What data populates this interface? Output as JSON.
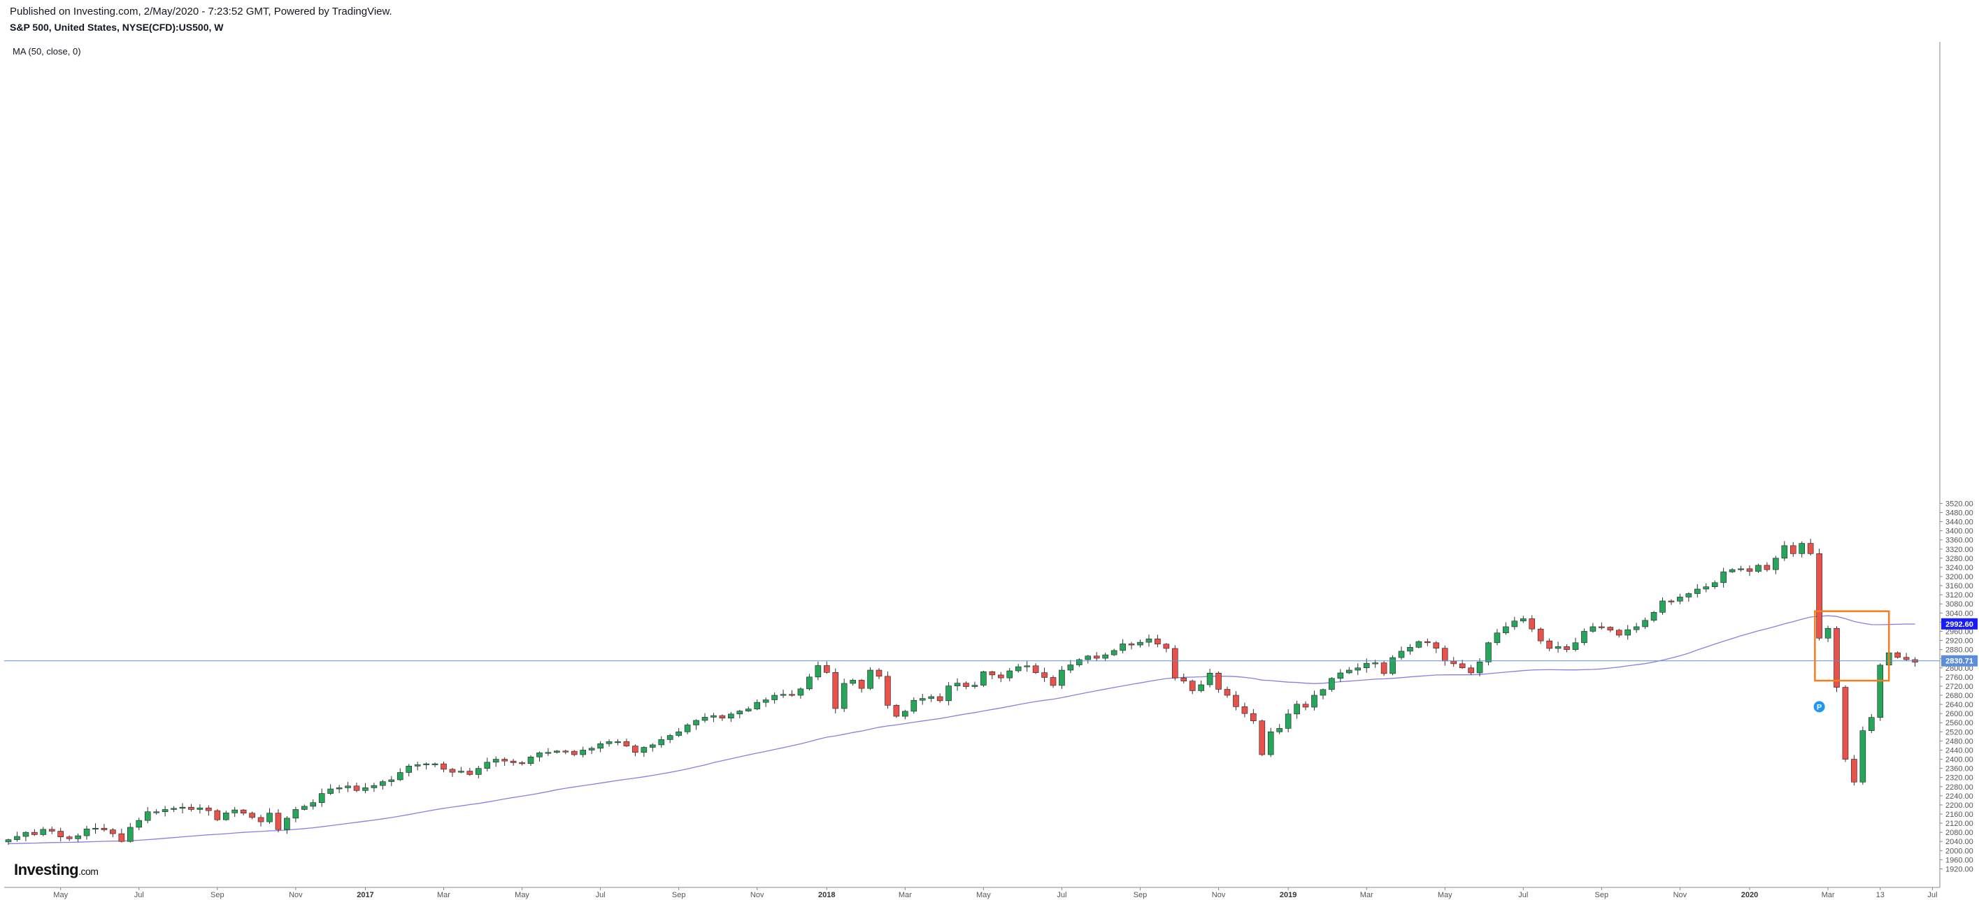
{
  "header": {
    "publish_line": "Published on Investing.com, 2/May/2020 - 7:23:52 GMT, Powered by TradingView.",
    "symbol_line": "S&P 500, United States, NYSE(CFD):US500, W"
  },
  "indicator_label": "MA (50, close, 0)",
  "logo": {
    "main": "Investing",
    "suffix": ".com"
  },
  "colors": {
    "up": "#26a65b",
    "down": "#e8524a",
    "ma": "#8a7fe0",
    "last_price": "#5b8dd9",
    "ma_badge": "#1a1aff",
    "highlight": "#f57c1f",
    "marker": "#2196f3"
  },
  "chart_data": {
    "type": "candlestick",
    "title": "S&P 500, United States, NYSE(CFD):US500, W",
    "y_range": [
      1900,
      5540
    ],
    "y_ticks": [
      "1920.00",
      "1960.00",
      "2000.00",
      "2040.00",
      "2080.00",
      "2120.00",
      "2160.00",
      "2200.00",
      "2240.00",
      "2280.00",
      "2320.00",
      "2360.00",
      "2400.00",
      "2440.00",
      "2480.00",
      "2520.00",
      "2560.00",
      "2600.00",
      "2640.00",
      "2680.00",
      "2720.00",
      "2760.00",
      "2800.00",
      "2840.00",
      "2880.00",
      "2920.00",
      "2960.00",
      "3000.00",
      "3040.00",
      "3080.00",
      "3120.00",
      "3160.00",
      "3200.00",
      "3240.00",
      "3280.00",
      "3320.00",
      "3360.00",
      "3400.00",
      "3440.00",
      "3480.00",
      "3520.00"
    ],
    "x_labels": [
      {
        "label": "May",
        "week": 6,
        "bold": false
      },
      {
        "label": "Jul",
        "week": 15,
        "bold": false
      },
      {
        "label": "Sep",
        "week": 24,
        "bold": false
      },
      {
        "label": "Nov",
        "week": 33,
        "bold": false
      },
      {
        "label": "2017",
        "week": 41,
        "bold": true
      },
      {
        "label": "Mar",
        "week": 50,
        "bold": false
      },
      {
        "label": "May",
        "week": 59,
        "bold": false
      },
      {
        "label": "Jul",
        "week": 68,
        "bold": false
      },
      {
        "label": "Sep",
        "week": 77,
        "bold": false
      },
      {
        "label": "Nov",
        "week": 86,
        "bold": false
      },
      {
        "label": "2018",
        "week": 94,
        "bold": true
      },
      {
        "label": "Mar",
        "week": 103,
        "bold": false
      },
      {
        "label": "May",
        "week": 112,
        "bold": false
      },
      {
        "label": "Jul",
        "week": 121,
        "bold": false
      },
      {
        "label": "Sep",
        "week": 130,
        "bold": false
      },
      {
        "label": "Nov",
        "week": 139,
        "bold": false
      },
      {
        "label": "2019",
        "week": 147,
        "bold": true
      },
      {
        "label": "Mar",
        "week": 156,
        "bold": false
      },
      {
        "label": "May",
        "week": 165,
        "bold": false
      },
      {
        "label": "Jul",
        "week": 174,
        "bold": false
      },
      {
        "label": "Sep",
        "week": 183,
        "bold": false
      },
      {
        "label": "Nov",
        "week": 192,
        "bold": false
      },
      {
        "label": "2020",
        "week": 200,
        "bold": true
      },
      {
        "label": "Mar",
        "week": 209,
        "bold": false
      },
      {
        "label": "13",
        "week": 215,
        "bold": false
      },
      {
        "label": "Jul",
        "week": 221,
        "bold": false
      }
    ],
    "last_price": {
      "value": 2830.71,
      "label": "2830.71"
    },
    "ma_last": {
      "value": 2992.6,
      "label": "2992.60"
    },
    "ma_start": 2030,
    "highlight_box": {
      "week_from": 207.5,
      "week_to": 216,
      "price_from": 2744,
      "price_to": 3048
    },
    "marker": {
      "label": "P",
      "week": 208,
      "price": 2630
    },
    "closes": [
      2048,
      2062,
      2080,
      2070,
      2093,
      2085,
      2060,
      2052,
      2065,
      2095,
      2098,
      2091,
      2074,
      2040,
      2102,
      2132,
      2170,
      2170,
      2180,
      2185,
      2190,
      2180,
      2187,
      2175,
      2135,
      2165,
      2178,
      2164,
      2145,
      2126,
      2164,
      2092,
      2142,
      2180,
      2194,
      2210,
      2250,
      2270,
      2275,
      2283,
      2263,
      2275,
      2285,
      2302,
      2310,
      2342,
      2370,
      2376,
      2380,
      2380,
      2356,
      2343,
      2348,
      2333,
      2360,
      2387,
      2400,
      2392,
      2385,
      2381,
      2410,
      2428,
      2430,
      2436,
      2435,
      2420,
      2440,
      2448,
      2468,
      2477,
      2477,
      2458,
      2430,
      2452,
      2463,
      2486,
      2504,
      2520,
      2550,
      2570,
      2584,
      2591,
      2580,
      2598,
      2611,
      2620,
      2649,
      2660,
      2680,
      2684,
      2680,
      2708,
      2760,
      2810,
      2780,
      2622,
      2732,
      2746,
      2710,
      2790,
      2763,
      2636,
      2588,
      2610,
      2658,
      2666,
      2674,
      2656,
      2721,
      2733,
      2718,
      2724,
      2783,
      2769,
      2756,
      2787,
      2805,
      2809,
      2779,
      2758,
      2723,
      2790,
      2813,
      2836,
      2852,
      2842,
      2857,
      2876,
      2905,
      2900,
      2912,
      2927,
      2904,
      2885,
      2756,
      2742,
      2700,
      2726,
      2777,
      2706,
      2680,
      2630,
      2600,
      2568,
      2420,
      2520,
      2535,
      2598,
      2641,
      2628,
      2680,
      2705,
      2754,
      2778,
      2790,
      2800,
      2820,
      2822,
      2775,
      2845,
      2873,
      2890,
      2915,
      2910,
      2886,
      2830,
      2818,
      2800,
      2778,
      2826,
      2910,
      2953,
      2980,
      3005,
      3015,
      2970,
      2918,
      2885,
      2893,
      2880,
      2910,
      2960,
      2980,
      2978,
      2965,
      2943,
      2967,
      2980,
      3008,
      3043,
      3093,
      3092,
      3110,
      3125,
      3145,
      3155,
      3173,
      3220,
      3230,
      3234,
      3222,
      3249,
      3230,
      3280,
      3335,
      3300,
      3345,
      3300,
      2930,
      2973,
      2715,
      2400,
      2300,
      2525,
      2583,
      2812,
      2866,
      2846,
      2836,
      2825
    ]
  }
}
